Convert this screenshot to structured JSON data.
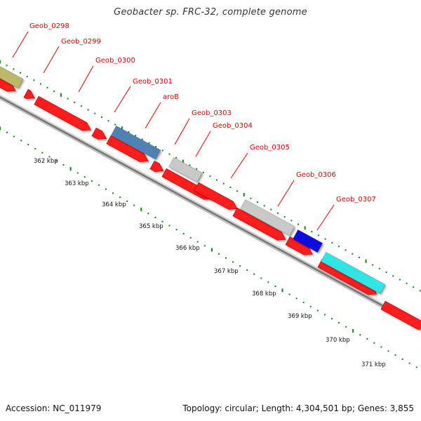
{
  "title": "Geobacter sp. FRC-32, complete genome",
  "footer": {
    "accession": "Accession: NC_011979",
    "stats": "Topology: circular; Length: 4,304,501 bp; Genes: 3,855"
  },
  "colors": {
    "cds": "#ff1a1a",
    "label": "#e00000",
    "tick": "#0a8a0a",
    "backbone": "#8c8c8c"
  },
  "gene_labels": [
    {
      "name": "Geob_0298",
      "color": "#e00000"
    },
    {
      "name": "Geob_0299",
      "color": "#e00000"
    },
    {
      "name": "Geob_0300",
      "color": "#e00000"
    },
    {
      "name": "Geob_0301",
      "color": "#e00000"
    },
    {
      "name": "aroB",
      "color": "#e00000"
    },
    {
      "name": "Geob_0303",
      "color": "#e00000"
    },
    {
      "name": "Geob_0304",
      "color": "#e00000"
    },
    {
      "name": "Geob_0305",
      "color": "#e00000"
    },
    {
      "name": "Geob_0306",
      "color": "#e00000"
    },
    {
      "name": "Geob_0307",
      "color": "#e00000"
    }
  ],
  "feature_bars": [
    {
      "name": "feature-khaki",
      "color": "#bdb76b"
    },
    {
      "name": "feature-steelblue",
      "color": "#4f81b5"
    },
    {
      "name": "feature-silver-1",
      "color": "#c9c9c9"
    },
    {
      "name": "feature-silver-2",
      "color": "#c9c9c9"
    },
    {
      "name": "feature-blue",
      "color": "#1010e0"
    },
    {
      "name": "feature-cyan",
      "color": "#33e5e5"
    }
  ],
  "tick_labels": [
    "362 kbp",
    "363 kbp",
    "364 kbp",
    "365 kbp",
    "366 kbp",
    "367 kbp",
    "368 kbp",
    "369 kbp",
    "370 kbp",
    "371 kbp"
  ]
}
